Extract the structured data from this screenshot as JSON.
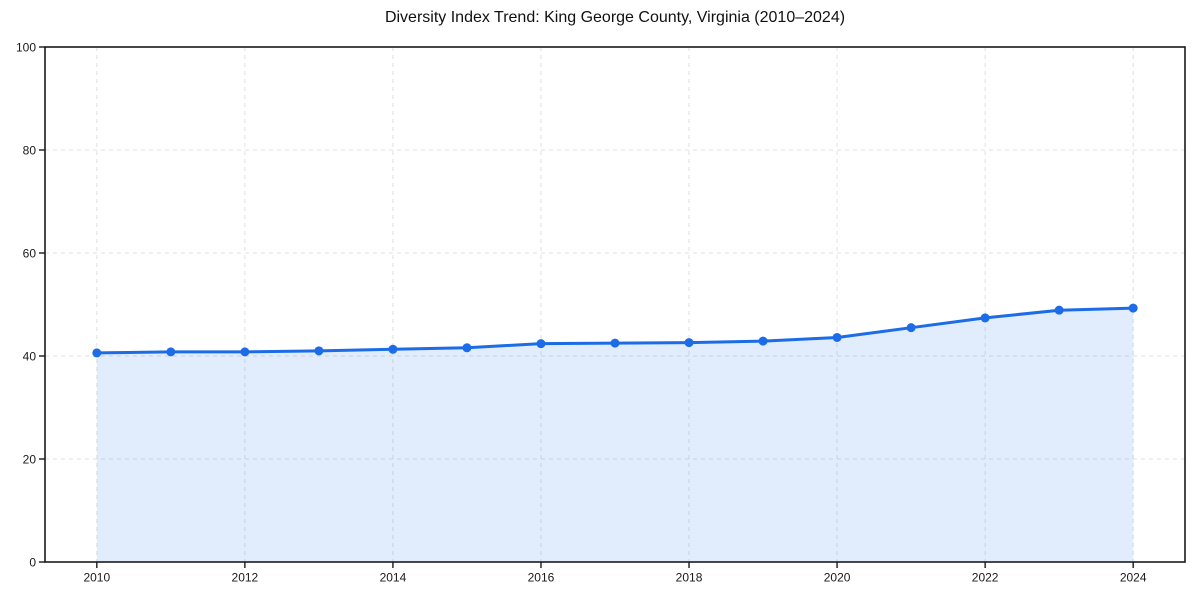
{
  "page": {
    "background": "#ffffff"
  },
  "chart_data": {
    "type": "area",
    "title": "Diversity Index Trend: King George County, Virginia (2010–2024)",
    "x": [
      2010,
      2011,
      2012,
      2013,
      2014,
      2015,
      2016,
      2017,
      2018,
      2019,
      2020,
      2021,
      2022,
      2023,
      2024
    ],
    "series": [
      {
        "name": "Diversity Index",
        "values": [
          40.6,
          40.8,
          40.8,
          41.0,
          41.3,
          41.6,
          42.4,
          42.5,
          42.6,
          42.9,
          43.6,
          45.5,
          47.4,
          48.9,
          49.3
        ]
      }
    ],
    "xlabel": "",
    "ylabel": "",
    "xlim": [
      2009.3,
      2024.7
    ],
    "ylim": [
      0,
      100
    ],
    "xticks": [
      2010,
      2012,
      2014,
      2016,
      2018,
      2020,
      2022,
      2024
    ],
    "yticks": [
      0,
      20,
      40,
      60,
      80,
      100
    ],
    "grid": {
      "show": true,
      "style": "dashed",
      "color": "#e0e0e0"
    },
    "legend": {
      "position": "none"
    },
    "style": {
      "line_color": "#1b6ce6",
      "marker_color": "#1b6ce6",
      "fill_color": "rgba(27, 108, 230, 0.13)",
      "axis_color": "#1a1a1a",
      "tick_label_color": "#1a1a1a",
      "line_width": 3,
      "marker_radius": 4.5
    }
  }
}
